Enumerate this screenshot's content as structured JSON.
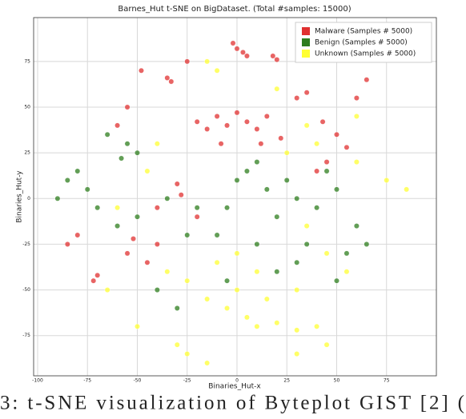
{
  "chart_data": {
    "type": "scatter",
    "title": "Barnes_Hut t-SNE on BigDataset. (Total #samples: 15000)",
    "xlabel": "Binaries_Hut-x",
    "ylabel": "Binaries_Hut-y",
    "xlim": [
      -102,
      100
    ],
    "ylim": [
      -97,
      99
    ],
    "xticks": [
      -100,
      -75,
      -50,
      -25,
      0,
      25,
      50,
      75
    ],
    "yticks": [
      -75,
      -50,
      -25,
      0,
      25,
      50,
      75
    ],
    "grid": true,
    "legend": "upper right",
    "series": [
      {
        "name": "Malware (Samples # 5000)",
        "color": "#e03030",
        "x": [
          0,
          -2,
          3,
          5,
          18,
          20,
          -35,
          -33,
          -10,
          -5,
          0,
          5,
          10,
          15,
          -15,
          -20,
          -8,
          12,
          22,
          30,
          35,
          43,
          50,
          55,
          60,
          65,
          -55,
          -60,
          -85,
          -80,
          -72,
          -70,
          -55,
          -52,
          -45,
          -40,
          -30,
          -28,
          -40,
          -20,
          45,
          40,
          -48,
          -25
        ],
        "y": [
          82,
          85,
          80,
          78,
          78,
          76,
          66,
          64,
          45,
          40,
          47,
          42,
          38,
          45,
          38,
          42,
          30,
          30,
          33,
          55,
          58,
          42,
          35,
          28,
          55,
          65,
          50,
          40,
          -25,
          -20,
          -45,
          -42,
          -30,
          -22,
          -35,
          -25,
          8,
          2,
          -5,
          -10,
          20,
          15,
          70,
          75
        ]
      },
      {
        "name": "Benign (Samples # 5000)",
        "color": "#2e7d1e",
        "x": [
          -65,
          -55,
          -50,
          -58,
          -80,
          -90,
          -85,
          -75,
          -70,
          -50,
          -35,
          -20,
          0,
          5,
          10,
          15,
          -5,
          20,
          30,
          40,
          50,
          60,
          65,
          55,
          35,
          10,
          -10,
          -25,
          -40,
          -30,
          20,
          30,
          -60,
          45,
          -5,
          50,
          25
        ],
        "y": [
          35,
          30,
          25,
          22,
          15,
          0,
          10,
          5,
          -5,
          -10,
          0,
          -5,
          10,
          15,
          20,
          5,
          -5,
          -10,
          0,
          -5,
          5,
          -15,
          -25,
          -30,
          -25,
          -25,
          -20,
          -20,
          -50,
          -60,
          -40,
          -35,
          -15,
          15,
          -45,
          -45,
          10
        ]
      },
      {
        "name": "Unknown (Samples # 5000)",
        "color": "#ffff33",
        "x": [
          -15,
          -10,
          20,
          35,
          40,
          60,
          75,
          85,
          -5,
          5,
          10,
          20,
          30,
          40,
          15,
          0,
          -15,
          -25,
          -35,
          -30,
          -25,
          -15,
          -50,
          30,
          35,
          0,
          10,
          -10,
          45,
          55,
          -45,
          -40,
          25,
          60,
          -60,
          -65,
          30,
          45
        ],
        "y": [
          75,
          70,
          60,
          40,
          30,
          20,
          10,
          5,
          -60,
          -65,
          -70,
          -68,
          -72,
          -70,
          -55,
          -50,
          -55,
          -45,
          -40,
          -80,
          -85,
          -90,
          -70,
          -50,
          -15,
          -30,
          -40,
          -35,
          -30,
          -40,
          15,
          30,
          25,
          45,
          -5,
          -50,
          -85,
          -80
        ]
      }
    ]
  },
  "caption": "3: t-SNE visualization of Byteplot GIST [2] ("
}
